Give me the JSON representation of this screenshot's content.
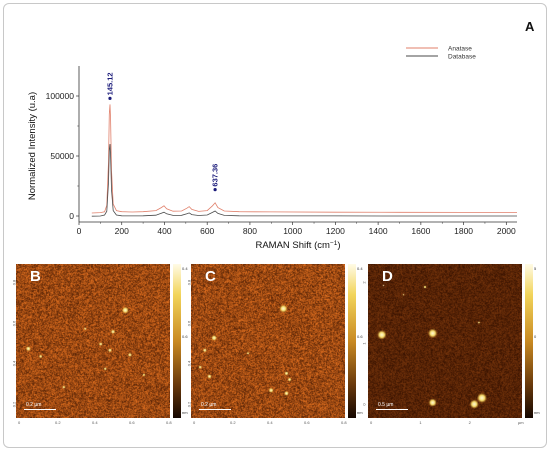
{
  "chart_data": {
    "type": "line",
    "panel_label": "A",
    "xlabel": "RAMAN Shift (cm",
    "xlabel_sup": "−1",
    "xlabel_tail": ")",
    "ylabel": "Normalized Intensity (u.a)",
    "xlim": [
      0,
      2050
    ],
    "ylim": [
      -5000,
      125000
    ],
    "xticks": [
      0,
      200,
      400,
      600,
      800,
      1000,
      1200,
      1400,
      1600,
      1800,
      2000
    ],
    "yticks": [
      0,
      50000,
      100000
    ],
    "ytick_labels": [
      "0",
      "50000",
      "100000"
    ],
    "legend_position": "top-right",
    "series": [
      {
        "name": "Anatase",
        "color": "#e07f6a",
        "x": [
          60,
          100,
          120,
          130,
          138,
          142,
          145,
          148,
          152,
          160,
          175,
          200,
          250,
          300,
          360,
          385,
          398,
          410,
          440,
          480,
          505,
          516,
          528,
          560,
          600,
          625,
          637,
          650,
          680,
          750,
          900,
          1200,
          1500,
          1800,
          2050
        ],
        "y": [
          2500,
          2800,
          3500,
          9000,
          45000,
          85000,
          93000,
          80000,
          38000,
          10000,
          4500,
          3600,
          3300,
          3600,
          4500,
          7000,
          8500,
          6000,
          4000,
          4200,
          6500,
          7800,
          5500,
          3800,
          4500,
          8500,
          11000,
          7000,
          4200,
          3600,
          3400,
          3200,
          3100,
          3000,
          3000
        ]
      },
      {
        "name": "Database",
        "color": "#4a4a4a",
        "x": [
          60,
          100,
          120,
          130,
          138,
          142,
          145,
          148,
          152,
          160,
          175,
          200,
          250,
          300,
          360,
          385,
          398,
          410,
          440,
          480,
          505,
          516,
          528,
          560,
          600,
          625,
          637,
          650,
          680,
          750,
          900,
          1200,
          1500,
          1800,
          2050
        ],
        "y": [
          -200,
          0,
          800,
          4000,
          28000,
          55000,
          60000,
          50000,
          22000,
          4500,
          800,
          200,
          100,
          200,
          700,
          2300,
          3200,
          1800,
          500,
          600,
          1800,
          2600,
          1200,
          400,
          800,
          3000,
          4200,
          2200,
          500,
          200,
          100,
          50,
          0,
          0,
          0
        ]
      }
    ],
    "annotations": [
      {
        "label": "145.12",
        "x": 145,
        "y": 98000,
        "color": "#1a1a7a"
      },
      {
        "label": "637.36",
        "x": 637,
        "y": 22000,
        "color": "#1a1a7a"
      }
    ]
  },
  "afm_panels": [
    {
      "letter": "B",
      "scale_label": "0.2 µm",
      "cbar_ticks": [
        "0.4",
        "0.6",
        "nm"
      ],
      "x_ticks": [
        "0",
        "0.2",
        "0.4",
        "0.6",
        "0.8"
      ],
      "y_ticks": [
        "0.8",
        "0.6",
        "0.4",
        "0.2"
      ],
      "dots": [
        [
          0.71,
          0.3,
          2.2
        ],
        [
          0.63,
          0.44,
          1.4
        ],
        [
          0.08,
          0.55,
          1.6
        ],
        [
          0.55,
          0.52,
          1.2
        ],
        [
          0.61,
          0.56,
          1.3
        ],
        [
          0.74,
          0.59,
          1.3
        ],
        [
          0.16,
          0.6,
          1.1
        ],
        [
          0.58,
          0.68,
          1.0
        ],
        [
          0.31,
          0.8,
          1.0
        ],
        [
          0.45,
          0.42,
          0.9
        ],
        [
          0.83,
          0.72,
          0.9
        ]
      ]
    },
    {
      "letter": "C",
      "scale_label": "0.2 µm",
      "cbar_ticks": [
        "0.4",
        "0.6",
        "nm"
      ],
      "x_ticks": [
        "0",
        "0.2",
        "0.4",
        "0.6",
        "0.8"
      ],
      "y_ticks": [
        "0.8",
        "0.6",
        "0.4",
        "0.2"
      ],
      "dots": [
        [
          0.6,
          0.29,
          2.6
        ],
        [
          0.15,
          0.48,
          1.8
        ],
        [
          0.09,
          0.56,
          1.3
        ],
        [
          0.06,
          0.67,
          1.1
        ],
        [
          0.12,
          0.73,
          1.4
        ],
        [
          0.62,
          0.71,
          1.3
        ],
        [
          0.64,
          0.75,
          1.2
        ],
        [
          0.52,
          0.82,
          1.6
        ],
        [
          0.62,
          0.84,
          1.5
        ],
        [
          0.37,
          0.58,
          0.9
        ]
      ]
    },
    {
      "letter": "D",
      "scale_label": "0.5 µm",
      "cbar_ticks": [
        "5",
        "0",
        "nm"
      ],
      "x_ticks": [
        "0",
        "1",
        "2",
        "µm"
      ],
      "y_ticks": [
        "2",
        "1",
        "0"
      ],
      "dots": [
        [
          0.09,
          0.46,
          3.0
        ],
        [
          0.42,
          0.45,
          3.0
        ],
        [
          0.42,
          0.9,
          2.6
        ],
        [
          0.69,
          0.91,
          2.9
        ],
        [
          0.74,
          0.87,
          3.2
        ],
        [
          0.37,
          0.15,
          0.9
        ],
        [
          0.72,
          0.38,
          0.8
        ],
        [
          0.23,
          0.2,
          0.6
        ],
        [
          0.1,
          0.14,
          0.6
        ]
      ]
    }
  ]
}
